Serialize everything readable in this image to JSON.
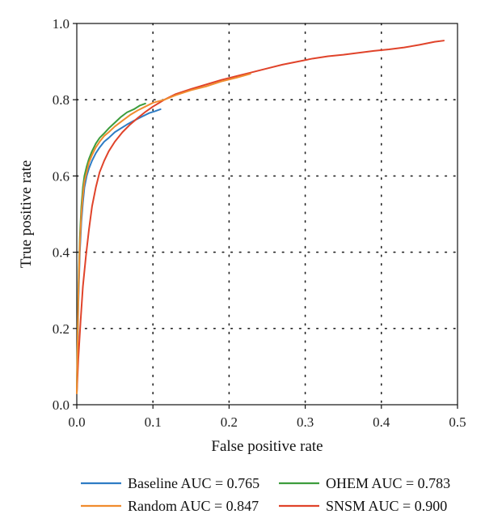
{
  "chart_data": {
    "type": "line",
    "title": "",
    "xlabel": "False positive rate",
    "ylabel": "True positive rate",
    "xlim": [
      0,
      0.5
    ],
    "ylim": [
      0,
      1.0
    ],
    "x_ticks": [
      "0.0",
      "0.1",
      "0.2",
      "0.3",
      "0.4",
      "0.5"
    ],
    "y_ticks": [
      "0.0",
      "0.2",
      "0.4",
      "0.6",
      "0.8",
      "1.0"
    ],
    "grid": "dotted",
    "legend_position": "bottom",
    "series": [
      {
        "name": "Baseline AUC = 0.765",
        "color": "#2f7cc4",
        "points": [
          [
            0,
            0.03
          ],
          [
            0.002,
            0.26
          ],
          [
            0.004,
            0.4
          ],
          [
            0.006,
            0.48
          ],
          [
            0.008,
            0.53
          ],
          [
            0.01,
            0.57
          ],
          [
            0.013,
            0.6
          ],
          [
            0.016,
            0.62
          ],
          [
            0.02,
            0.64
          ],
          [
            0.025,
            0.66
          ],
          [
            0.03,
            0.675
          ],
          [
            0.036,
            0.69
          ],
          [
            0.042,
            0.7
          ],
          [
            0.05,
            0.715
          ],
          [
            0.058,
            0.725
          ],
          [
            0.066,
            0.735
          ],
          [
            0.075,
            0.745
          ],
          [
            0.085,
            0.755
          ],
          [
            0.095,
            0.765
          ],
          [
            0.103,
            0.77
          ],
          [
            0.11,
            0.775
          ]
        ]
      },
      {
        "name": "OHEM AUC = 0.783",
        "color": "#3d9d3d",
        "points": [
          [
            0,
            0.03
          ],
          [
            0.002,
            0.3
          ],
          [
            0.004,
            0.44
          ],
          [
            0.006,
            0.52
          ],
          [
            0.008,
            0.57
          ],
          [
            0.01,
            0.6
          ],
          [
            0.013,
            0.625
          ],
          [
            0.016,
            0.645
          ],
          [
            0.02,
            0.665
          ],
          [
            0.025,
            0.685
          ],
          [
            0.03,
            0.7
          ],
          [
            0.036,
            0.712
          ],
          [
            0.042,
            0.725
          ],
          [
            0.05,
            0.74
          ],
          [
            0.058,
            0.755
          ],
          [
            0.066,
            0.767
          ],
          [
            0.075,
            0.775
          ],
          [
            0.083,
            0.785
          ],
          [
            0.09,
            0.79
          ]
        ]
      },
      {
        "name": "Random AUC = 0.847",
        "color": "#f08c2e",
        "points": [
          [
            0,
            0.03
          ],
          [
            0.002,
            0.28
          ],
          [
            0.004,
            0.42
          ],
          [
            0.006,
            0.5
          ],
          [
            0.008,
            0.55
          ],
          [
            0.01,
            0.585
          ],
          [
            0.013,
            0.61
          ],
          [
            0.016,
            0.635
          ],
          [
            0.02,
            0.655
          ],
          [
            0.025,
            0.675
          ],
          [
            0.03,
            0.69
          ],
          [
            0.036,
            0.705
          ],
          [
            0.042,
            0.715
          ],
          [
            0.05,
            0.73
          ],
          [
            0.06,
            0.745
          ],
          [
            0.07,
            0.76
          ],
          [
            0.08,
            0.772
          ],
          [
            0.09,
            0.782
          ],
          [
            0.1,
            0.792
          ],
          [
            0.115,
            0.8
          ],
          [
            0.13,
            0.812
          ],
          [
            0.15,
            0.825
          ],
          [
            0.17,
            0.835
          ],
          [
            0.19,
            0.848
          ],
          [
            0.21,
            0.858
          ],
          [
            0.228,
            0.868
          ]
        ]
      },
      {
        "name": "SNSM AUC = 0.900",
        "color": "#e0432a",
        "points": [
          [
            0,
            0.03
          ],
          [
            0.002,
            0.12
          ],
          [
            0.005,
            0.22
          ],
          [
            0.008,
            0.31
          ],
          [
            0.012,
            0.39
          ],
          [
            0.016,
            0.46
          ],
          [
            0.02,
            0.52
          ],
          [
            0.025,
            0.57
          ],
          [
            0.03,
            0.61
          ],
          [
            0.036,
            0.64
          ],
          [
            0.042,
            0.665
          ],
          [
            0.05,
            0.69
          ],
          [
            0.06,
            0.715
          ],
          [
            0.07,
            0.735
          ],
          [
            0.08,
            0.752
          ],
          [
            0.09,
            0.768
          ],
          [
            0.1,
            0.782
          ],
          [
            0.115,
            0.8
          ],
          [
            0.13,
            0.815
          ],
          [
            0.15,
            0.828
          ],
          [
            0.17,
            0.84
          ],
          [
            0.19,
            0.852
          ],
          [
            0.21,
            0.862
          ],
          [
            0.23,
            0.872
          ],
          [
            0.25,
            0.882
          ],
          [
            0.27,
            0.892
          ],
          [
            0.29,
            0.9
          ],
          [
            0.31,
            0.908
          ],
          [
            0.33,
            0.914
          ],
          [
            0.35,
            0.918
          ],
          [
            0.37,
            0.923
          ],
          [
            0.39,
            0.928
          ],
          [
            0.41,
            0.932
          ],
          [
            0.43,
            0.937
          ],
          [
            0.45,
            0.944
          ],
          [
            0.47,
            0.952
          ],
          [
            0.482,
            0.955
          ]
        ]
      }
    ]
  }
}
